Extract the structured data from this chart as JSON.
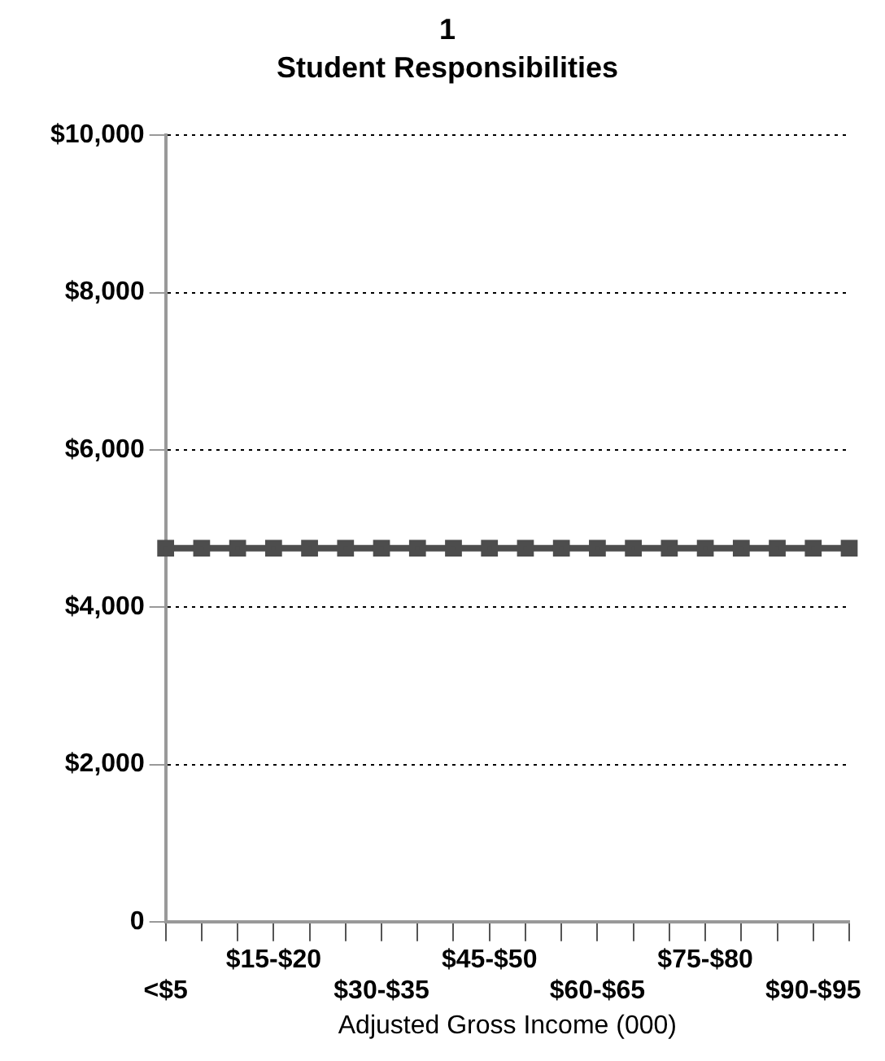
{
  "chart_data": {
    "type": "line",
    "title": "1",
    "subtitle": "Student Responsibilities",
    "xlabel": "Adjusted Gross Income (000)",
    "categories": [
      "<$5",
      null,
      null,
      "$15-$20",
      null,
      null,
      "$30-$35",
      null,
      null,
      "$45-$50",
      null,
      null,
      "$60-$65",
      null,
      null,
      "$75-$80",
      null,
      null,
      "$90-$95",
      null
    ],
    "series": [
      {
        "color": "#4d4d4d",
        "values": [
          4750,
          4750,
          4750,
          4750,
          4750,
          4750,
          4750,
          4750,
          4750,
          4750,
          4750,
          4750,
          4750,
          4750,
          4750,
          4750,
          4750,
          4750,
          4750,
          4750
        ]
      }
    ],
    "ylim": [
      0,
      10000
    ],
    "yticks": [
      0,
      {
        "value": 2000,
        "label": "$2,000"
      },
      {
        "value": 4000,
        "label": "$4,000"
      },
      {
        "value": 6000,
        "label": "$6,000"
      },
      {
        "value": 8000,
        "label": "$8,000"
      },
      {
        "value": 10000,
        "label": "$10,000"
      }
    ],
    "grid": "y",
    "legend": false,
    "marker": "square",
    "line_style": "solid"
  }
}
